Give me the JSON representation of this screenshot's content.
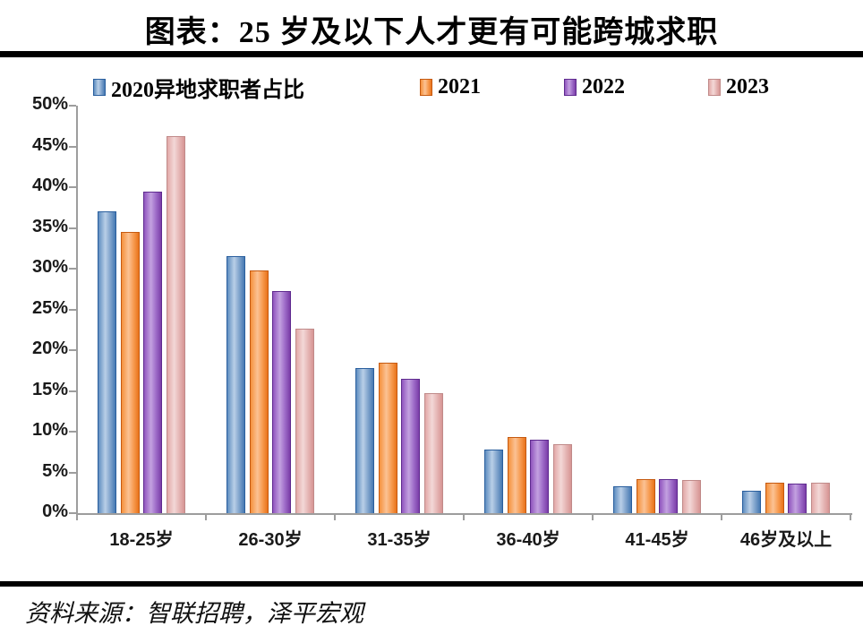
{
  "title": "图表：25 岁及以下人才更有可能跨城求职",
  "source": "资料来源：智联招聘，泽平宏观",
  "colors": {
    "axis": "#9d9d9d",
    "divider": "#000000",
    "text": "#1a1a1a"
  },
  "chart_data": {
    "type": "bar",
    "title": "图表：25 岁及以下人才更有可能跨城求职",
    "xlabel": "",
    "ylabel": "",
    "ylim": [
      0,
      50
    ],
    "yticks": [
      "0%",
      "5%",
      "10%",
      "15%",
      "20%",
      "25%",
      "30%",
      "35%",
      "40%",
      "45%",
      "50%"
    ],
    "grid": false,
    "legend_position": "top",
    "categories": [
      "18-25岁",
      "26-30岁",
      "31-35岁",
      "36-40岁",
      "41-45岁",
      "46岁及以上"
    ],
    "series": [
      {
        "name": "2020异地求职者占比",
        "values": [
          37.0,
          31.5,
          17.8,
          7.8,
          3.3,
          2.7
        ],
        "border": "#2a5f9e",
        "gradient": [
          "#5e8dc0",
          "#b9cfe7",
          "#7fa3cc",
          "#4679b2"
        ]
      },
      {
        "name": "2021",
        "values": [
          34.5,
          29.8,
          18.5,
          9.3,
          4.2,
          3.7
        ],
        "border": "#c55a11",
        "gradient": [
          "#f5913c",
          "#fbc294",
          "#f79b50",
          "#e9731a"
        ]
      },
      {
        "name": "2022",
        "values": [
          39.5,
          27.3,
          16.5,
          9.0,
          4.2,
          3.6
        ],
        "border": "#5f2b8f",
        "gradient": [
          "#9055be",
          "#c3a1e0",
          "#9e6cc8",
          "#7b3da8"
        ]
      },
      {
        "name": "2023",
        "values": [
          46.3,
          22.6,
          14.7,
          8.5,
          4.1,
          3.7
        ],
        "border": "#c08a89",
        "gradient": [
          "#e2a9a8",
          "#f3d8d7",
          "#e5b5b4",
          "#d79594"
        ]
      }
    ]
  }
}
